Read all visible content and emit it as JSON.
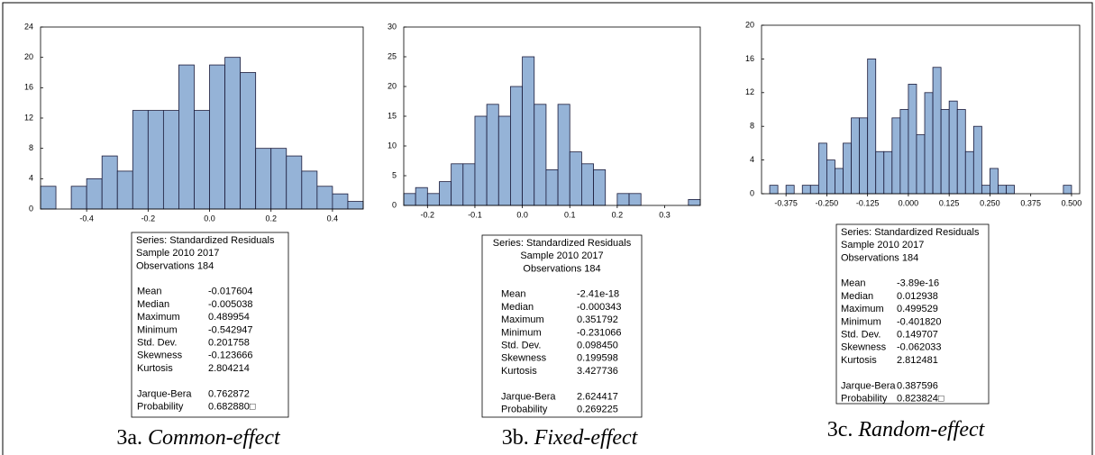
{
  "chart_data": [
    {
      "type": "histogram",
      "color": "#95b3d7",
      "bins": [
        -0.55,
        -0.5,
        -0.45,
        -0.4,
        -0.35,
        -0.3,
        -0.25,
        -0.2,
        -0.15,
        -0.1,
        -0.05,
        0,
        0.05,
        0.1,
        0.15,
        0.2,
        0.25,
        0.3,
        0.35,
        0.4,
        0.45,
        0.5
      ],
      "values": [
        3,
        0,
        3,
        4,
        7,
        5,
        13,
        13,
        13,
        19,
        13,
        19,
        20,
        18,
        8,
        8,
        7,
        5,
        3,
        2,
        1
      ],
      "xlim": [
        -0.55,
        0.5
      ],
      "xticks": [
        -0.4,
        -0.2,
        {
          "value": 0,
          "label": "0.0"
        },
        0.2,
        0.4
      ],
      "ylim": [
        0,
        24
      ],
      "yticks": [
        0,
        4,
        8,
        12,
        16,
        20,
        24
      ],
      "stats": {
        "header": [
          "Series: Standardized Residuals",
          "Sample 2010 2017",
          "Observations 184"
        ],
        "rows": [
          [
            "Mean",
            "-0.017604"
          ],
          [
            "Median",
            "-0.005038"
          ],
          [
            "Maximum",
            "0.489954"
          ],
          [
            "Minimum",
            "-0.542947"
          ],
          [
            "Std. Dev.",
            "0.201758"
          ],
          [
            "Skewness",
            "-0.123666"
          ],
          [
            "Kurtosis",
            "2.804214"
          ]
        ],
        "tests": [
          [
            "Jarque-Bera",
            "0.762872"
          ],
          [
            "Probability",
            "0.682880□"
          ]
        ]
      },
      "caption": {
        "label": "3a.",
        "name": "Common-effect"
      }
    },
    {
      "type": "histogram",
      "color": "#95b3d7",
      "bins": [
        -0.25,
        -0.225,
        -0.2,
        -0.175,
        -0.15,
        -0.125,
        -0.1,
        -0.075,
        -0.05,
        -0.025,
        0,
        0.025,
        0.05,
        0.075,
        0.1,
        0.125,
        0.15,
        0.175,
        0.2,
        0.225,
        0.25,
        0.275,
        0.3,
        0.325,
        0.35,
        0.375
      ],
      "values": [
        2,
        3,
        2,
        4,
        7,
        7,
        15,
        17,
        15,
        20,
        25,
        17,
        6,
        17,
        9,
        7,
        6,
        0,
        2,
        2,
        0,
        0,
        0,
        0,
        1
      ],
      "xlim": [
        -0.25,
        0.375
      ],
      "xticks": [
        -0.2,
        -0.1,
        {
          "value": 0,
          "label": "0.0"
        },
        0.1,
        0.2,
        0.3
      ],
      "ylim": [
        0,
        30
      ],
      "yticks": [
        0,
        5,
        10,
        15,
        20,
        25,
        30
      ],
      "stats": {
        "header": [
          "Series: Standardized Residuals",
          "Sample 2010 2017",
          "Observations 184"
        ],
        "rows": [
          [
            "Mean",
            "-2.41e-18"
          ],
          [
            "Median",
            "-0.000343"
          ],
          [
            "Maximum",
            "0.351792"
          ],
          [
            "Minimum",
            "-0.231066"
          ],
          [
            "Std. Dev.",
            "0.098450"
          ],
          [
            "Skewness",
            "0.199598"
          ],
          [
            "Kurtosis",
            "3.427736"
          ]
        ],
        "tests": [
          [
            "Jarque-Bera",
            "2.624417"
          ],
          [
            "Probability",
            "0.269225"
          ]
        ]
      },
      "caption": {
        "label": "3b.",
        "name": "Fixed-effect"
      }
    },
    {
      "type": "histogram",
      "color": "#95b3d7",
      "bins": [
        -0.425,
        -0.4,
        -0.375,
        -0.35,
        -0.325,
        -0.3,
        -0.275,
        -0.25,
        -0.225,
        -0.2,
        -0.175,
        -0.15,
        -0.125,
        -0.1,
        -0.075,
        -0.05,
        -0.025,
        0,
        0.025,
        0.05,
        0.075,
        0.1,
        0.125,
        0.15,
        0.175,
        0.2,
        0.225,
        0.25,
        0.275,
        0.3,
        0.325,
        0.35,
        0.375,
        0.4,
        0.425,
        0.45,
        0.475,
        0.5
      ],
      "values": [
        1,
        0,
        1,
        0,
        1,
        1,
        6,
        4,
        3,
        6,
        9,
        9,
        16,
        5,
        5,
        9,
        10,
        13,
        7,
        12,
        15,
        10,
        11,
        10,
        5,
        8,
        1,
        3,
        1,
        1,
        0,
        0,
        0,
        0,
        0,
        0,
        1
      ],
      "xlim": [
        -0.45,
        0.525
      ],
      "xticks": [
        -0.375,
        {
          "value": -0.25,
          "label": "-0.250"
        },
        -0.125,
        {
          "value": 0,
          "label": "0.000"
        },
        0.125,
        {
          "value": 0.25,
          "label": "0.250"
        },
        0.375,
        {
          "value": 0.5,
          "label": "0.500"
        }
      ],
      "ylim": [
        0,
        20
      ],
      "yticks": [
        0,
        4,
        8,
        12,
        16,
        20
      ],
      "stats": {
        "header": [
          "Series: Standardized Residuals",
          "Sample 2010 2017",
          "Observations 184"
        ],
        "rows": [
          [
            "Mean",
            "-3.89e-16"
          ],
          [
            "Median",
            "0.012938"
          ],
          [
            "Maximum",
            "0.499529"
          ],
          [
            "Minimum",
            "-0.401820"
          ],
          [
            "Std. Dev.",
            "0.149707"
          ],
          [
            "Skewness",
            "-0.062033"
          ],
          [
            "Kurtosis",
            "2.812481"
          ]
        ],
        "tests": [
          [
            "Jarque-Bera",
            "0.387596"
          ],
          [
            "Probability",
            "0.823824□"
          ]
        ]
      },
      "caption": {
        "label": "3c.",
        "name": "Random-effect"
      }
    }
  ]
}
